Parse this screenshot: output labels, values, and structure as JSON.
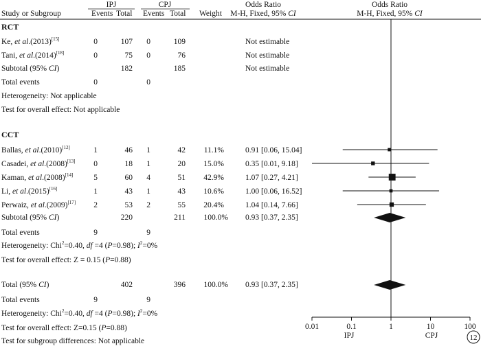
{
  "header": {
    "study_col": "Study or Subgroup",
    "ipj": "IPJ",
    "cpj": "CPJ",
    "events": "Events",
    "total": "Total",
    "weight": "Weight",
    "or_title": "Odds Ratio",
    "or_method_prefix": "M-H, Fixed, 95% ",
    "ci": "CI",
    "plot_title": "Odds Ratio",
    "plot_method_prefix": "M-H, Fixed, 95% "
  },
  "groups": [
    {
      "name": "RCT",
      "studies": [
        {
          "author": "Ke, ",
          "etal": "et al",
          "year": ".(2013)",
          "ref": "[15]",
          "e1": "0",
          "t1": "107",
          "e2": "0",
          "t2": "109",
          "weight": "",
          "or_text": "Not estimable",
          "or": null,
          "lo": null,
          "hi": null
        },
        {
          "author": "Tani, ",
          "etal": "et al",
          "year": ".(2014)",
          "ref": "[18]",
          "e1": "0",
          "t1": "75",
          "e2": "0",
          "t2": "76",
          "weight": "",
          "or_text": "Not estimable",
          "or": null,
          "lo": null,
          "hi": null
        }
      ],
      "subtotal": {
        "label_prefix": "Subtotal (95% ",
        "ci": "CI",
        "label_suffix": ")",
        "t1": "182",
        "t2": "185",
        "weight": "",
        "or_text": "Not estimable"
      },
      "total_events": {
        "label": "Total events",
        "e1": "0",
        "e2": "0"
      },
      "heterogeneity": "Heterogeneity: Not applicable",
      "overall": "Test for overall effect: Not applicable"
    },
    {
      "name": "CCT",
      "studies": [
        {
          "author": "Ballas, ",
          "etal": "et al",
          "year": ".(2010)",
          "ref": "[12]",
          "e1": "1",
          "t1": "46",
          "e2": "1",
          "t2": "42",
          "weight": "11.1%",
          "or_text": "0.91 [0.06, 15.04]",
          "or": 0.91,
          "lo": 0.06,
          "hi": 15.04
        },
        {
          "author": "Casadei, ",
          "etal": "et al",
          "year": ".(2008)",
          "ref": "[13]",
          "e1": "0",
          "t1": "18",
          "e2": "1",
          "t2": "20",
          "weight": "15.0%",
          "or_text": "0.35 [0.01, 9.18]",
          "or": 0.35,
          "lo": 0.01,
          "hi": 9.18
        },
        {
          "author": "Kaman, ",
          "etal": "et al",
          "year": ".(2008)",
          "ref": "[14]",
          "e1": "5",
          "t1": "60",
          "e2": "4",
          "t2": "51",
          "weight": "42.9%",
          "or_text": "1.07 [0.27, 4.21]",
          "or": 1.07,
          "lo": 0.27,
          "hi": 4.21
        },
        {
          "author": "Li, ",
          "etal": "et al",
          "year": ".(2015)",
          "ref": "[16]",
          "e1": "1",
          "t1": "43",
          "e2": "1",
          "t2": "43",
          "weight": "10.6%",
          "or_text": "1.00 [0.06, 16.52]",
          "or": 1.0,
          "lo": 0.06,
          "hi": 16.52
        },
        {
          "author": "Perwaiz, ",
          "etal": "et al",
          "year": ".(2009)",
          "ref": "[17]",
          "e1": "2",
          "t1": "53",
          "e2": "2",
          "t2": "55",
          "weight": "20.4%",
          "or_text": "1.04 [0.14, 7.66]",
          "or": 1.04,
          "lo": 0.14,
          "hi": 7.66
        }
      ],
      "subtotal": {
        "label_prefix": "Subtotal (95% ",
        "ci": "CI",
        "label_suffix": ")",
        "t1": "220",
        "t2": "211",
        "weight": "100.0%",
        "or_text": "0.93 [0.37, 2.35]",
        "or": 0.93,
        "lo": 0.37,
        "hi": 2.35
      },
      "total_events": {
        "label": "Total events",
        "e1": "9",
        "e2": "9"
      },
      "heterogeneity": {
        "pre": "Heterogeneity: Chi",
        "sup1": "2",
        "mid1": "=0.40, ",
        "df": "df",
        "mid2": " =4 (",
        "p": "P",
        "mid3": "=0.98); ",
        "i": "I",
        "sup2": "2",
        "post": "=0%"
      },
      "overall": {
        "pre": "Test for overall effect: Z = 0.15 (",
        "p": "P",
        "post": "=0.88)"
      }
    }
  ],
  "total": {
    "label_prefix": "Total (95% ",
    "ci": "CI",
    "label_suffix": ")",
    "t1": "402",
    "t2": "396",
    "weight": "100.0%",
    "or_text": "0.93 [0.37, 2.35]",
    "or": 0.93,
    "lo": 0.37,
    "hi": 2.35,
    "total_events": {
      "label": "Total events",
      "e1": "9",
      "e2": "9"
    },
    "heterogeneity": {
      "pre": "Heterogeneity: Chi",
      "sup1": "2",
      "mid1": "=0.40, ",
      "df": "df",
      "mid2": " =4 (",
      "p": "P",
      "mid3": "=0.98); ",
      "i": "I",
      "sup2": "2",
      "post": "=0%"
    },
    "overall": {
      "pre": "Test for overall effect: Z=0.15 (",
      "p": "P",
      "post": "=0.88)"
    },
    "subgroup_diff": "Test for subgroup differences: Not applicable"
  },
  "chart_data": {
    "type": "forest",
    "scale": "log",
    "xlim": [
      0.01,
      100
    ],
    "ticks": [
      0.01,
      0.1,
      1,
      10,
      100
    ],
    "tick_labels": [
      "0.01",
      "0.1",
      "1",
      "10",
      "100"
    ],
    "favours_left": "IPJ",
    "favours_right": "CPJ",
    "null_line": 1,
    "corner_badge": "12"
  }
}
